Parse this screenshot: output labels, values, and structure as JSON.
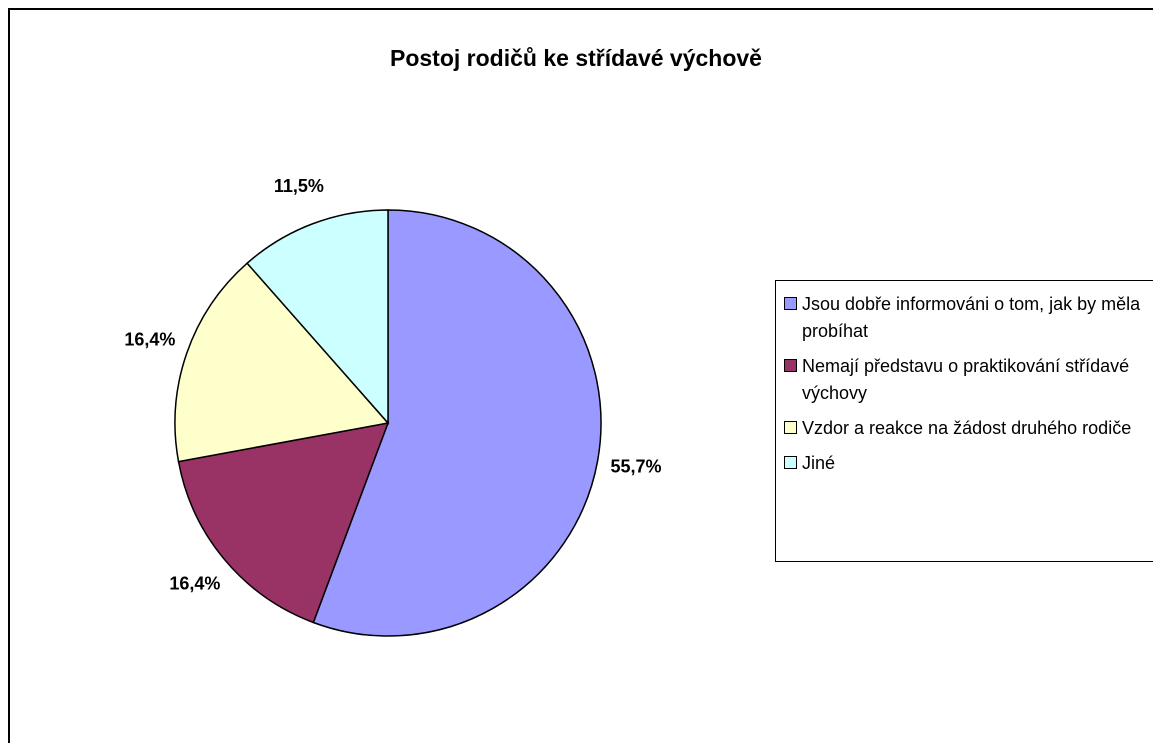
{
  "chart_data": {
    "type": "pie",
    "title": "Postoj rodičů ke střídavé výchově",
    "categories": [
      "Jsou dobře informováni o tom, jak by měla probíhat",
      "Nemají představu o praktikování střídavé výchovy",
      "Vzdor a reakce na žádost druhého rodiče",
      "Jiné"
    ],
    "values": [
      55.7,
      16.4,
      16.4,
      11.5
    ],
    "value_labels": [
      "55,7%",
      "16,4%",
      "16,4%",
      "11,5%"
    ],
    "colors": [
      "#9999ff",
      "#993366",
      "#ffffcc",
      "#ccffff"
    ],
    "legend": "right"
  }
}
